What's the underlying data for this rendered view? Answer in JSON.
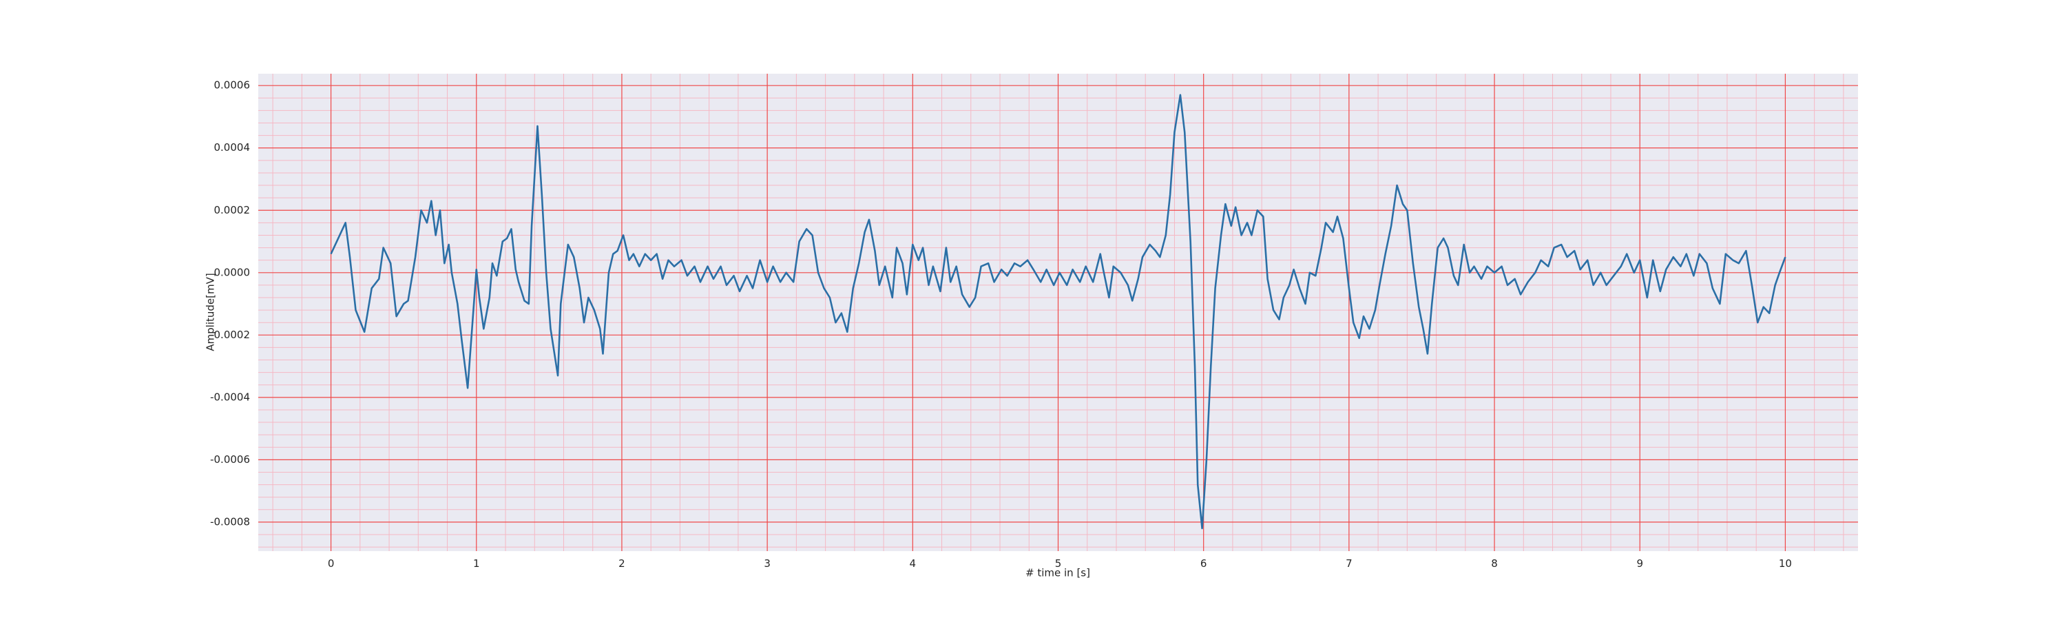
{
  "chart_data": {
    "type": "line",
    "xlabel": "# time in [s]",
    "ylabel": "Amplitude[mV]",
    "color": "#2b6fa6",
    "major_grid_color": "#f04848",
    "minor_grid_color": "#f5b8c4",
    "background": "#eaeaf2",
    "grid": true,
    "minor_grid": true,
    "xlim": [
      -0.5,
      10.5
    ],
    "xticks": [
      0,
      1,
      2,
      3,
      4,
      5,
      6,
      7,
      8,
      9,
      10
    ],
    "ylim": [
      -0.000893,
      0.000638
    ],
    "yticks": [
      0.0006,
      0.0004,
      0.0002,
      {
        "value": 0,
        "label": "0.0000"
      },
      -0.0002,
      -0.0004,
      -0.0006,
      -0.0008
    ],
    "x": [
      0,
      0.07,
      0.1,
      0.13,
      0.17,
      0.23,
      0.28,
      0.33,
      0.36,
      0.41,
      0.45,
      0.5,
      0.53,
      0.58,
      0.62,
      0.66,
      0.69,
      0.72,
      0.75,
      0.78,
      0.81,
      0.83,
      0.87,
      0.9,
      0.94,
      0.97,
      1.0,
      1.02,
      1.05,
      1.09,
      1.11,
      1.14,
      1.18,
      1.21,
      1.24,
      1.27,
      1.29,
      1.33,
      1.36,
      1.38,
      1.42,
      1.45,
      1.48,
      1.51,
      1.56,
      1.58,
      1.63,
      1.67,
      1.71,
      1.74,
      1.77,
      1.81,
      1.85,
      1.87,
      1.91,
      1.94,
      1.97,
      2.01,
      2.05,
      2.08,
      2.12,
      2.16,
      2.2,
      2.24,
      2.28,
      2.32,
      2.36,
      2.41,
      2.45,
      2.5,
      2.54,
      2.59,
      2.63,
      2.68,
      2.72,
      2.77,
      2.81,
      2.86,
      2.9,
      2.95,
      3.0,
      3.04,
      3.09,
      3.13,
      3.18,
      3.22,
      3.27,
      3.31,
      3.35,
      3.39,
      3.43,
      3.47,
      3.51,
      3.55,
      3.59,
      3.63,
      3.67,
      3.7,
      3.74,
      3.77,
      3.81,
      3.86,
      3.89,
      3.93,
      3.96,
      4.0,
      4.04,
      4.07,
      4.11,
      4.14,
      4.19,
      4.23,
      4.26,
      4.3,
      4.34,
      4.39,
      4.43,
      4.47,
      4.52,
      4.56,
      4.61,
      4.65,
      4.7,
      4.74,
      4.79,
      4.83,
      4.88,
      4.92,
      4.97,
      5.01,
      5.06,
      5.1,
      5.15,
      5.19,
      5.24,
      5.29,
      5.31,
      5.35,
      5.38,
      5.43,
      5.48,
      5.51,
      5.55,
      5.58,
      5.63,
      5.67,
      5.7,
      5.74,
      5.77,
      5.8,
      5.84,
      5.87,
      5.91,
      5.94,
      5.96,
      5.99,
      6.02,
      6.05,
      6.08,
      6.12,
      6.15,
      6.19,
      6.22,
      6.26,
      6.3,
      6.33,
      6.37,
      6.41,
      6.44,
      6.48,
      6.52,
      6.55,
      6.59,
      6.62,
      6.66,
      6.7,
      6.73,
      6.77,
      6.81,
      6.84,
      6.89,
      6.92,
      6.96,
      7.0,
      7.03,
      7.07,
      7.1,
      7.14,
      7.18,
      7.21,
      7.25,
      7.29,
      7.33,
      7.37,
      7.4,
      7.44,
      7.48,
      7.51,
      7.54,
      7.57,
      7.61,
      7.65,
      7.68,
      7.72,
      7.75,
      7.79,
      7.83,
      7.86,
      7.91,
      7.95,
      8.0,
      8.05,
      8.09,
      8.14,
      8.18,
      8.23,
      8.28,
      8.32,
      8.37,
      8.41,
      8.46,
      8.5,
      8.55,
      8.59,
      8.64,
      8.68,
      8.73,
      8.77,
      8.82,
      8.87,
      8.91,
      8.96,
      9.0,
      9.05,
      9.09,
      9.14,
      9.18,
      9.23,
      9.28,
      9.32,
      9.37,
      9.41,
      9.46,
      9.5,
      9.55,
      9.59,
      9.64,
      9.68,
      9.73,
      9.77,
      9.81,
      9.85,
      9.89,
      9.93,
      9.96,
      10.0
    ],
    "values": [
      6e-05,
      0.00013,
      0.00016,
      5e-05,
      -0.00012,
      -0.00019,
      -5e-05,
      -2e-05,
      8e-05,
      3e-05,
      -0.00014,
      -0.0001,
      -9e-05,
      5e-05,
      0.0002,
      0.00016,
      0.00023,
      0.00012,
      0.0002,
      3e-05,
      9e-05,
      0,
      -0.0001,
      -0.00022,
      -0.00037,
      -0.00018,
      1e-05,
      -8e-05,
      -0.00018,
      -8e-05,
      3e-05,
      -1e-05,
      0.0001,
      0.00011,
      0.00014,
      1e-05,
      -3e-05,
      -9e-05,
      -0.0001,
      0.00015,
      0.00047,
      0.00025,
      0,
      -0.00018,
      -0.00033,
      -0.0001,
      9e-05,
      5e-05,
      -5e-05,
      -0.00016,
      -8e-05,
      -0.00012,
      -0.00018,
      -0.00026,
      0,
      6e-05,
      7e-05,
      0.00012,
      4e-05,
      6e-05,
      2e-05,
      6e-05,
      4e-05,
      6e-05,
      -2e-05,
      4e-05,
      2e-05,
      4e-05,
      -1e-05,
      2e-05,
      -3e-05,
      2e-05,
      -2e-05,
      2e-05,
      -4e-05,
      -1e-05,
      -6e-05,
      -1e-05,
      -5e-05,
      4e-05,
      -3e-05,
      2e-05,
      -3e-05,
      0,
      -3e-05,
      0.0001,
      0.00014,
      0.00012,
      0,
      -5e-05,
      -8e-05,
      -0.00016,
      -0.00013,
      -0.00019,
      -5e-05,
      3e-05,
      0.00013,
      0.00017,
      7e-05,
      -4e-05,
      2e-05,
      -8e-05,
      8e-05,
      3e-05,
      -7e-05,
      9e-05,
      4e-05,
      8e-05,
      -4e-05,
      2e-05,
      -6e-05,
      8e-05,
      -3e-05,
      2e-05,
      -7e-05,
      -0.00011,
      -8e-05,
      2e-05,
      3e-05,
      -3e-05,
      1e-05,
      -1e-05,
      3e-05,
      2e-05,
      4e-05,
      1e-05,
      -3e-05,
      1e-05,
      -4e-05,
      0,
      -4e-05,
      1e-05,
      -3e-05,
      2e-05,
      -3e-05,
      6e-05,
      1e-05,
      -8e-05,
      2e-05,
      0,
      -4e-05,
      -9e-05,
      -2e-05,
      5e-05,
      9e-05,
      7e-05,
      5e-05,
      0.00012,
      0.00025,
      0.00045,
      0.00057,
      0.00045,
      0.0001,
      -0.0003,
      -0.00068,
      -0.00082,
      -0.0006,
      -0.0003,
      -5e-05,
      0.00012,
      0.00022,
      0.00015,
      0.00021,
      0.00012,
      0.00016,
      0.00012,
      0.0002,
      0.00018,
      -2e-05,
      -0.00012,
      -0.00015,
      -8e-05,
      -4e-05,
      1e-05,
      -5e-05,
      -0.0001,
      0,
      -1e-05,
      8e-05,
      0.00016,
      0.00013,
      0.00018,
      0.00011,
      -5e-05,
      -0.00016,
      -0.00021,
      -0.00014,
      -0.00018,
      -0.00012,
      -4e-05,
      6e-05,
      0.00015,
      0.00028,
      0.00022,
      0.0002,
      3e-05,
      -0.00011,
      -0.00018,
      -0.00026,
      -0.0001,
      8e-05,
      0.00011,
      8e-05,
      -1e-05,
      -4e-05,
      9e-05,
      0,
      2e-05,
      -2e-05,
      2e-05,
      0,
      2e-05,
      -4e-05,
      -2e-05,
      -7e-05,
      -3e-05,
      0,
      4e-05,
      2e-05,
      8e-05,
      9e-05,
      5e-05,
      7e-05,
      1e-05,
      4e-05,
      -4e-05,
      0,
      -4e-05,
      -1e-05,
      2e-05,
      6e-05,
      0,
      4e-05,
      -8e-05,
      4e-05,
      -6e-05,
      1e-05,
      5e-05,
      2e-05,
      6e-05,
      -1e-05,
      6e-05,
      3e-05,
      -5e-05,
      -0.0001,
      6e-05,
      4e-05,
      3e-05,
      7e-05,
      -4e-05,
      -0.00016,
      -0.00011,
      -0.00013,
      -4e-05,
      0,
      5e-05
    ]
  }
}
